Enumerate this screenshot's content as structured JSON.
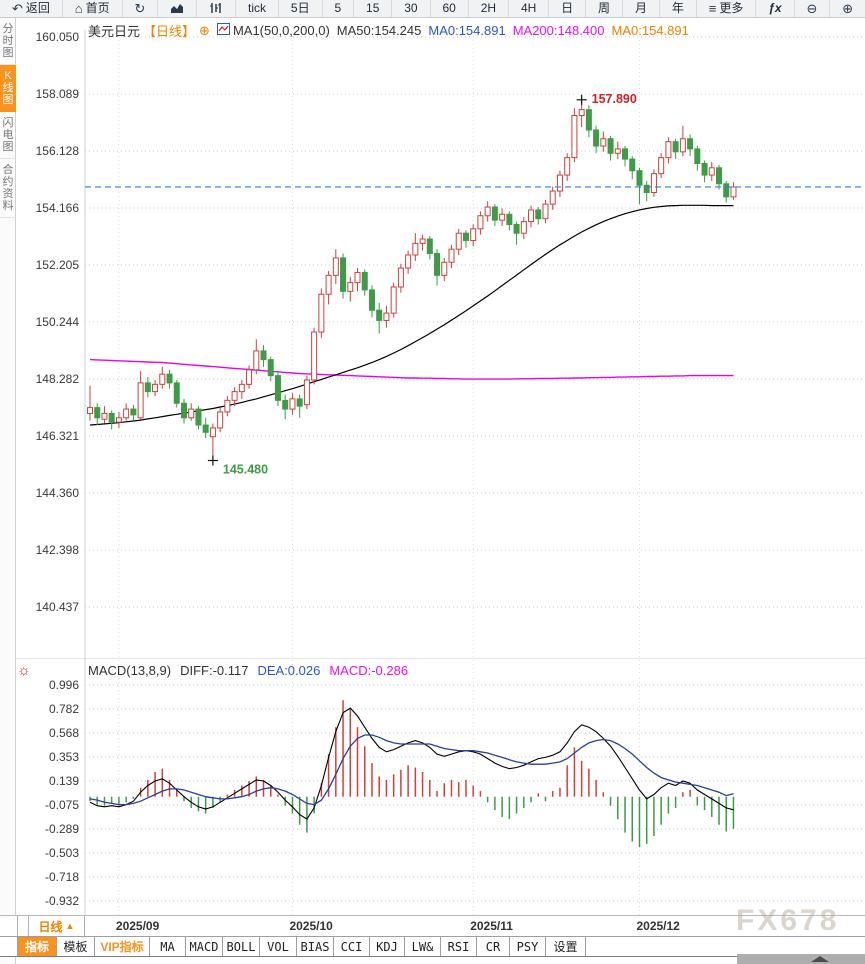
{
  "toolbar": {
    "items": [
      {
        "label": "返回",
        "icon": "back"
      },
      {
        "label": "首页",
        "icon": "home"
      },
      {
        "label": "",
        "icon": "refresh"
      },
      {
        "label": "",
        "icon": "area-chart"
      },
      {
        "label": "",
        "icon": "candles"
      },
      {
        "label": "tick",
        "icon": ""
      },
      {
        "label": "5日",
        "icon": ""
      },
      {
        "label": "5",
        "icon": ""
      },
      {
        "label": "15",
        "icon": ""
      },
      {
        "label": "30",
        "icon": ""
      },
      {
        "label": "60",
        "icon": ""
      },
      {
        "label": "2H",
        "icon": ""
      },
      {
        "label": "4H",
        "icon": ""
      },
      {
        "label": "日",
        "icon": ""
      },
      {
        "label": "周",
        "icon": ""
      },
      {
        "label": "月",
        "icon": ""
      },
      {
        "label": "年",
        "icon": ""
      },
      {
        "label": "更多",
        "icon": "menu"
      },
      {
        "label": "ƒx",
        "icon": ""
      },
      {
        "label": "",
        "icon": "zoom-out"
      },
      {
        "label": "",
        "icon": "zoom-in"
      }
    ]
  },
  "sidebar": {
    "tabs": [
      {
        "label": "分时图",
        "active": false
      },
      {
        "label": "K线图",
        "active": true
      },
      {
        "label": "闪电图",
        "active": false
      },
      {
        "label": "合约资料",
        "active": false
      }
    ]
  },
  "chart_header": {
    "symbol": "美元日元",
    "period": "【日线】",
    "oplus": "⊕",
    "ma_group": "MA1(50,0,200,0)",
    "ma50": "MA50:154.245",
    "ma0_blue": "MA0:154.891",
    "ma200": "MA200:148.400",
    "ma0_orange": "MA0:154.891"
  },
  "macd_header": {
    "name": "MACD(13,8,9)",
    "diff": "DIFF:-0.117",
    "dea": "DEA:0.026",
    "macd": "MACD:-0.286"
  },
  "period_box": {
    "label": "日线",
    "arrow": "▲"
  },
  "watermark": "FX678",
  "bottom_tabs": [
    {
      "label": "指标",
      "state": "active"
    },
    {
      "label": "模板",
      "state": ""
    },
    {
      "label": "VIP指标",
      "state": "vip"
    },
    {
      "label": "MA",
      "state": "mono"
    },
    {
      "label": "MACD",
      "state": "mono"
    },
    {
      "label": "BOLL",
      "state": "mono"
    },
    {
      "label": "VOL",
      "state": "mono"
    },
    {
      "label": "BIAS",
      "state": "mono"
    },
    {
      "label": "CCI",
      "state": "mono"
    },
    {
      "label": "KDJ",
      "state": "mono"
    },
    {
      "label": "LW&",
      "state": "mono"
    },
    {
      "label": "RSI",
      "state": "mono"
    },
    {
      "label": "CR",
      "state": "mono"
    },
    {
      "label": "PSY",
      "state": "mono"
    },
    {
      "label": "设置",
      "state": ""
    }
  ],
  "colors": {
    "accent_orange": "#f7931e",
    "header_orange": "#f08200",
    "up_red": "#d1403a",
    "down_green": "#3e9b47",
    "ma50_black": "#000000",
    "ma200_magenta": "#ee00ee",
    "diff_black": "#000000",
    "dea_blue": "#2a3f9e",
    "price_line_blue": "#2f7ded",
    "grid": "#c9c9d6",
    "month_grid": "#dcdce6",
    "axis_text": "#3a3a3a"
  },
  "chart_data": [
    {
      "type": "candlestick",
      "symbol": "美元日元",
      "interval": "日线",
      "ylim": [
        140.437,
        160.05
      ],
      "y_ticks": [
        160.05,
        158.089,
        156.128,
        154.166,
        152.205,
        150.244,
        148.282,
        146.321,
        144.36,
        142.398,
        140.437
      ],
      "x_labels": [
        "2025/09",
        "2025/10",
        "2025/11",
        "2025/12"
      ],
      "x_label_indices": [
        4,
        28,
        53,
        76
      ],
      "current_price": 154.891,
      "annotations": [
        {
          "type": "high",
          "index": 68,
          "price": 157.89,
          "label": "157.890"
        },
        {
          "type": "low",
          "index": 17,
          "price": 145.48,
          "label": "145.480"
        }
      ],
      "candles": [
        [
          147.1,
          148.05,
          146.85,
          147.3
        ],
        [
          147.3,
          147.45,
          146.7,
          146.95
        ],
        [
          146.9,
          147.35,
          146.75,
          147.1
        ],
        [
          147.1,
          147.2,
          146.55,
          146.8
        ],
        [
          146.8,
          147.15,
          146.6,
          146.95
        ],
        [
          146.95,
          147.45,
          146.85,
          147.25
        ],
        [
          147.25,
          147.4,
          146.85,
          147.05
        ],
        [
          146.95,
          148.55,
          146.9,
          148.15
        ],
        [
          148.15,
          148.35,
          147.65,
          147.85
        ],
        [
          147.85,
          148.25,
          147.7,
          148.1
        ],
        [
          148.1,
          148.7,
          147.95,
          148.45
        ],
        [
          148.45,
          148.6,
          147.95,
          148.15
        ],
        [
          148.15,
          148.25,
          147.3,
          147.45
        ],
        [
          147.45,
          147.6,
          146.75,
          146.95
        ],
        [
          146.95,
          147.45,
          146.85,
          147.25
        ],
        [
          147.25,
          147.35,
          146.55,
          146.7
        ],
        [
          146.7,
          146.95,
          146.25,
          146.45
        ],
        [
          146.3,
          146.75,
          145.48,
          146.6
        ],
        [
          146.6,
          147.3,
          146.45,
          147.15
        ],
        [
          147.15,
          147.7,
          147.0,
          147.55
        ],
        [
          147.55,
          148.0,
          147.35,
          147.85
        ],
        [
          147.85,
          148.25,
          147.6,
          148.1
        ],
        [
          148.1,
          148.75,
          147.95,
          148.6
        ],
        [
          148.6,
          149.65,
          148.45,
          149.25
        ],
        [
          149.25,
          149.45,
          148.7,
          148.95
        ],
        [
          148.95,
          149.05,
          148.2,
          148.4
        ],
        [
          148.4,
          148.5,
          147.35,
          147.55
        ],
        [
          147.55,
          147.75,
          146.9,
          147.25
        ],
        [
          147.25,
          147.8,
          147.05,
          147.6
        ],
        [
          147.6,
          147.75,
          146.95,
          147.35
        ],
        [
          147.4,
          148.4,
          147.25,
          148.25
        ],
        [
          148.25,
          150.05,
          148.1,
          149.9
        ],
        [
          149.9,
          151.4,
          149.7,
          151.2
        ],
        [
          151.2,
          152.0,
          150.85,
          151.85
        ],
        [
          151.85,
          152.75,
          151.55,
          152.45
        ],
        [
          152.45,
          152.6,
          151.05,
          151.3
        ],
        [
          151.3,
          151.8,
          150.95,
          151.6
        ],
        [
          151.6,
          152.1,
          151.3,
          151.95
        ],
        [
          151.95,
          152.05,
          151.15,
          151.35
        ],
        [
          151.35,
          151.5,
          150.4,
          150.65
        ],
        [
          150.65,
          150.9,
          149.85,
          150.3
        ],
        [
          150.3,
          150.8,
          150.05,
          150.55
        ],
        [
          150.55,
          151.6,
          150.4,
          151.45
        ],
        [
          151.45,
          152.25,
          151.25,
          152.1
        ],
        [
          152.1,
          152.7,
          151.9,
          152.55
        ],
        [
          152.55,
          153.3,
          152.35,
          152.95
        ],
        [
          152.95,
          153.25,
          152.7,
          153.1
        ],
        [
          153.1,
          153.2,
          152.4,
          152.6
        ],
        [
          152.6,
          152.75,
          151.5,
          151.85
        ],
        [
          151.85,
          152.45,
          151.65,
          152.3
        ],
        [
          152.3,
          152.9,
          152.1,
          152.75
        ],
        [
          152.75,
          153.45,
          152.55,
          153.3
        ],
        [
          153.3,
          153.4,
          152.8,
          153.05
        ],
        [
          153.05,
          153.6,
          152.85,
          153.45
        ],
        [
          153.45,
          154.05,
          153.25,
          153.9
        ],
        [
          153.9,
          154.4,
          153.7,
          154.2
        ],
        [
          154.2,
          154.3,
          153.55,
          153.75
        ],
        [
          153.75,
          154.15,
          153.55,
          153.95
        ],
        [
          153.95,
          154.05,
          153.4,
          153.6
        ],
        [
          153.6,
          153.7,
          152.9,
          153.3
        ],
        [
          153.3,
          153.85,
          153.1,
          153.7
        ],
        [
          153.7,
          154.25,
          153.5,
          154.1
        ],
        [
          154.1,
          154.2,
          153.6,
          153.8
        ],
        [
          153.8,
          154.45,
          153.65,
          154.3
        ],
        [
          154.3,
          154.9,
          154.1,
          154.75
        ],
        [
          154.75,
          155.45,
          154.55,
          155.3
        ],
        [
          155.3,
          156.05,
          155.1,
          155.9
        ],
        [
          155.9,
          157.6,
          155.75,
          157.35
        ],
        [
          157.35,
          157.89,
          156.95,
          157.55
        ],
        [
          157.55,
          157.7,
          156.6,
          156.85
        ],
        [
          156.85,
          157.0,
          156.05,
          156.3
        ],
        [
          156.3,
          156.8,
          156.1,
          156.55
        ],
        [
          156.55,
          156.65,
          155.8,
          156.05
        ],
        [
          156.05,
          156.45,
          155.85,
          156.2
        ],
        [
          156.2,
          156.3,
          155.6,
          155.85
        ],
        [
          155.85,
          155.95,
          155.15,
          155.45
        ],
        [
          155.45,
          155.55,
          154.3,
          154.95
        ],
        [
          154.95,
          155.1,
          154.4,
          154.7
        ],
        [
          154.7,
          155.5,
          154.55,
          155.35
        ],
        [
          155.35,
          156.05,
          155.2,
          155.9
        ],
        [
          155.9,
          156.6,
          155.7,
          156.45
        ],
        [
          156.45,
          156.55,
          155.85,
          156.1
        ],
        [
          156.1,
          157.0,
          155.95,
          156.55
        ],
        [
          156.55,
          156.7,
          155.95,
          156.2
        ],
        [
          156.2,
          156.3,
          155.45,
          155.7
        ],
        [
          155.7,
          155.8,
          155.05,
          155.3
        ],
        [
          155.3,
          155.75,
          155.1,
          155.55
        ],
        [
          155.55,
          155.65,
          154.8,
          155.0
        ],
        [
          155.0,
          155.1,
          154.35,
          154.55
        ],
        [
          154.55,
          155.05,
          154.45,
          154.89
        ]
      ],
      "overlays": {
        "ma50": [
          146.7,
          146.72,
          146.74,
          146.76,
          146.78,
          146.81,
          146.84,
          146.87,
          146.91,
          146.95,
          146.99,
          147.03,
          147.07,
          147.11,
          147.15,
          147.19,
          147.23,
          147.27,
          147.32,
          147.37,
          147.42,
          147.48,
          147.54,
          147.6,
          147.67,
          147.74,
          147.81,
          147.88,
          147.95,
          148.03,
          148.11,
          148.19,
          148.27,
          148.35,
          148.43,
          148.51,
          148.59,
          148.67,
          148.76,
          148.85,
          148.95,
          149.06,
          149.18,
          149.3,
          149.43,
          149.57,
          149.71,
          149.85,
          150.0,
          150.15,
          150.31,
          150.47,
          150.63,
          150.8,
          150.97,
          151.14,
          151.32,
          151.5,
          151.68,
          151.86,
          152.04,
          152.22,
          152.4,
          152.57,
          152.74,
          152.9,
          153.05,
          153.2,
          153.34,
          153.47,
          153.59,
          153.7,
          153.8,
          153.89,
          153.97,
          154.04,
          154.1,
          154.15,
          154.19,
          154.22,
          154.24,
          154.25,
          154.26,
          154.26,
          154.26,
          154.26,
          154.25,
          154.25,
          154.25,
          154.245
        ],
        "ma200": [
          148.95,
          148.94,
          148.93,
          148.92,
          148.91,
          148.9,
          148.89,
          148.88,
          148.87,
          148.86,
          148.85,
          148.83,
          148.81,
          148.79,
          148.77,
          148.75,
          148.73,
          148.71,
          148.69,
          148.67,
          148.65,
          148.63,
          148.61,
          148.59,
          148.57,
          148.55,
          148.53,
          148.51,
          148.49,
          148.47,
          148.46,
          148.45,
          148.44,
          148.43,
          148.42,
          148.41,
          148.4,
          148.39,
          148.38,
          148.37,
          148.36,
          148.35,
          148.34,
          148.33,
          148.32,
          148.32,
          148.31,
          148.31,
          148.3,
          148.3,
          148.29,
          148.29,
          148.28,
          148.28,
          148.28,
          148.28,
          148.28,
          148.28,
          148.28,
          148.29,
          148.29,
          148.29,
          148.3,
          148.3,
          148.3,
          148.31,
          148.31,
          148.32,
          148.32,
          148.33,
          148.33,
          148.34,
          148.34,
          148.35,
          148.35,
          148.36,
          148.36,
          148.37,
          148.37,
          148.38,
          148.38,
          148.39,
          148.39,
          148.4,
          148.4,
          148.4,
          148.4,
          148.4,
          148.4,
          148.4
        ]
      }
    },
    {
      "type": "macd",
      "params": "(13,8,9)",
      "values": {
        "diff": -0.117,
        "dea": 0.026,
        "macd": -0.286
      },
      "y_ticks": [
        0.996,
        0.782,
        0.568,
        0.353,
        0.139,
        -0.075,
        -0.289,
        -0.503,
        -0.718,
        -0.932
      ],
      "histogram": [
        -0.04,
        -0.07,
        -0.08,
        -0.06,
        -0.08,
        -0.05,
        -0.02,
        0.08,
        0.15,
        0.22,
        0.25,
        0.15,
        0.06,
        -0.04,
        -0.1,
        -0.13,
        -0.15,
        -0.1,
        -0.05,
        0.02,
        0.06,
        0.1,
        0.14,
        0.18,
        0.15,
        0.1,
        0.02,
        -0.08,
        -0.15,
        -0.25,
        -0.32,
        -0.15,
        0.12,
        0.38,
        0.62,
        0.86,
        0.78,
        0.62,
        0.45,
        0.3,
        0.18,
        0.15,
        0.2,
        0.24,
        0.28,
        0.26,
        0.22,
        0.15,
        0.05,
        0.12,
        0.15,
        0.13,
        0.15,
        0.1,
        0.05,
        -0.05,
        -0.12,
        -0.18,
        -0.2,
        -0.15,
        -0.1,
        -0.05,
        0.03,
        -0.04,
        0.05,
        0.08,
        0.28,
        0.44,
        0.32,
        0.25,
        0.15,
        0.04,
        -0.08,
        -0.2,
        -0.32,
        -0.4,
        -0.45,
        -0.42,
        -0.35,
        -0.25,
        -0.15,
        -0.1,
        0.04,
        0.06,
        -0.08,
        -0.12,
        -0.18,
        -0.25,
        -0.31,
        -0.286
      ],
      "diff_line": [
        -0.05,
        -0.08,
        -0.09,
        -0.08,
        -0.09,
        -0.07,
        -0.04,
        0.04,
        0.1,
        0.14,
        0.16,
        0.12,
        0.06,
        0.0,
        -0.05,
        -0.09,
        -0.11,
        -0.09,
        -0.05,
        -0.01,
        0.03,
        0.07,
        0.11,
        0.15,
        0.14,
        0.1,
        0.04,
        -0.03,
        -0.09,
        -0.16,
        -0.2,
        -0.1,
        0.1,
        0.35,
        0.58,
        0.75,
        0.79,
        0.72,
        0.62,
        0.52,
        0.44,
        0.4,
        0.42,
        0.45,
        0.48,
        0.5,
        0.48,
        0.44,
        0.38,
        0.36,
        0.38,
        0.4,
        0.41,
        0.4,
        0.38,
        0.34,
        0.3,
        0.27,
        0.25,
        0.26,
        0.28,
        0.31,
        0.34,
        0.35,
        0.37,
        0.4,
        0.48,
        0.58,
        0.64,
        0.62,
        0.58,
        0.52,
        0.45,
        0.36,
        0.26,
        0.16,
        0.06,
        -0.02,
        0.02,
        0.08,
        0.12,
        0.1,
        0.14,
        0.12,
        0.06,
        0.02,
        -0.02,
        -0.06,
        -0.1,
        -0.117
      ],
      "dea_line": [
        -0.02,
        -0.03,
        -0.05,
        -0.06,
        -0.07,
        -0.07,
        -0.06,
        -0.04,
        -0.01,
        0.02,
        0.05,
        0.07,
        0.07,
        0.06,
        0.04,
        0.02,
        0.0,
        -0.01,
        -0.02,
        -0.02,
        -0.01,
        0.0,
        0.02,
        0.05,
        0.07,
        0.08,
        0.07,
        0.05,
        0.02,
        -0.02,
        -0.06,
        -0.07,
        -0.03,
        0.07,
        0.2,
        0.34,
        0.45,
        0.52,
        0.55,
        0.55,
        0.53,
        0.5,
        0.48,
        0.47,
        0.47,
        0.47,
        0.47,
        0.47,
        0.45,
        0.43,
        0.42,
        0.41,
        0.41,
        0.41,
        0.4,
        0.39,
        0.37,
        0.35,
        0.33,
        0.31,
        0.3,
        0.29,
        0.29,
        0.29,
        0.3,
        0.31,
        0.34,
        0.39,
        0.44,
        0.48,
        0.5,
        0.51,
        0.5,
        0.47,
        0.43,
        0.38,
        0.32,
        0.26,
        0.21,
        0.17,
        0.15,
        0.13,
        0.12,
        0.11,
        0.1,
        0.08,
        0.06,
        0.04,
        0.01,
        0.026
      ]
    }
  ]
}
